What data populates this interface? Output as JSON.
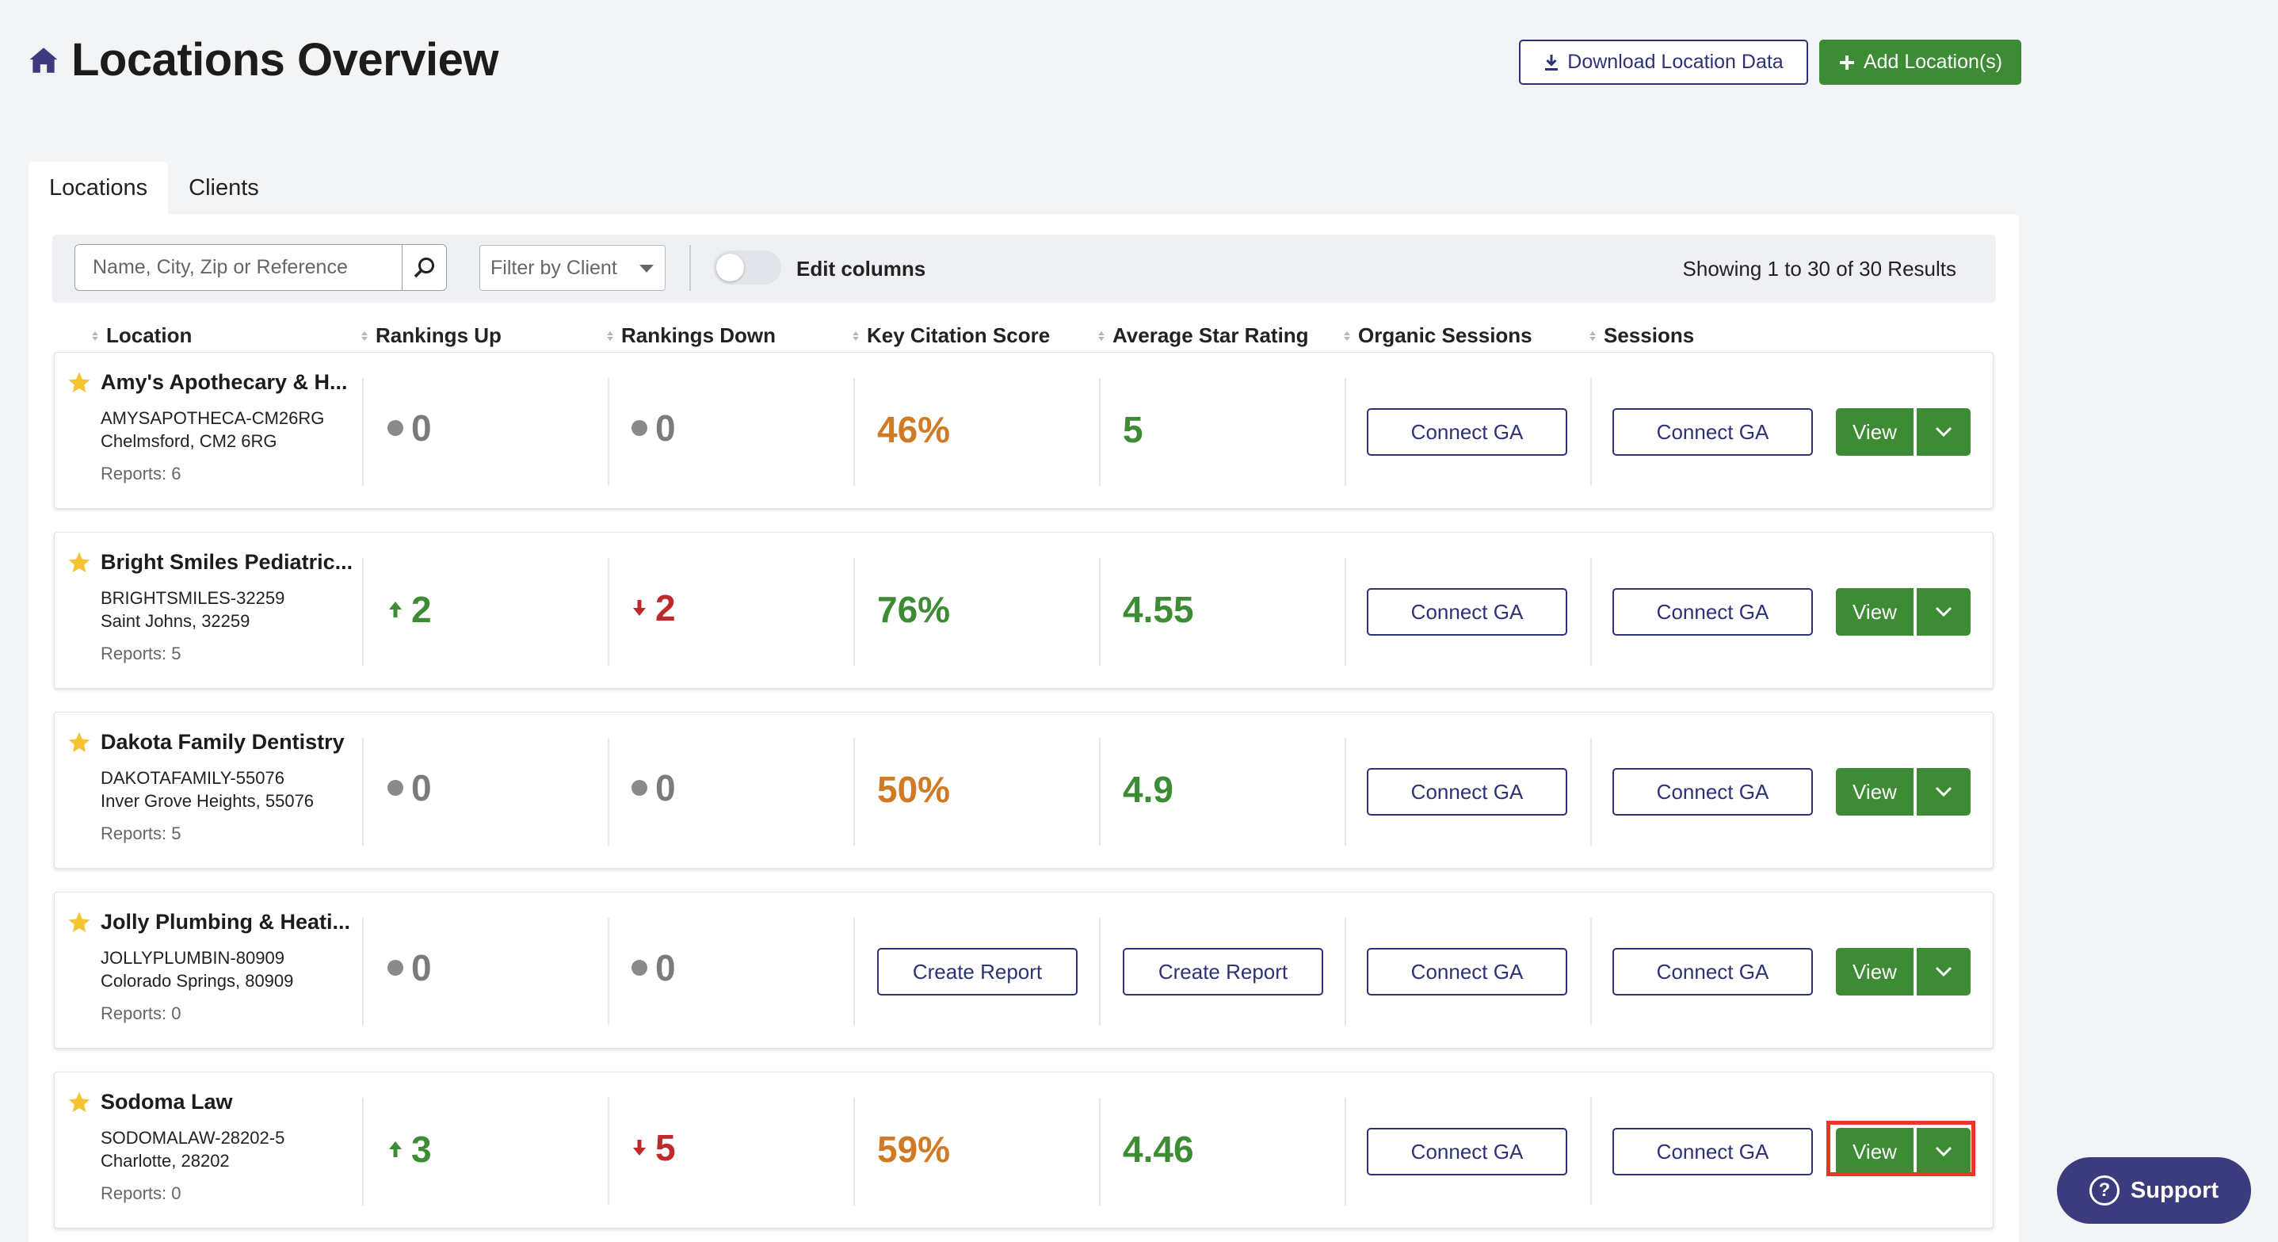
{
  "header": {
    "title": "Locations Overview",
    "download_label": "Download Location Data",
    "add_label": "Add Location(s)"
  },
  "tabs": [
    {
      "label": "Locations",
      "active": true
    },
    {
      "label": "Clients",
      "active": false
    }
  ],
  "filters": {
    "search_placeholder": "Name, City, Zip or Reference",
    "client_placeholder": "Filter by Client",
    "edit_columns_label": "Edit columns",
    "results_text": "Showing 1 to 30 of 30 Results"
  },
  "columns": [
    "Location",
    "Rankings Up",
    "Rankings Down",
    "Key Citation Score",
    "Average Star Rating",
    "Organic Sessions",
    "Sessions"
  ],
  "rows": [
    {
      "name": "Amy's Apothecary & H...",
      "ref": "AMYSAPOTHECA-CM26RG",
      "city": "Chelmsford, CM2 6RG",
      "reports": "Reports: 6",
      "up": "0",
      "up_state": "neutral",
      "down": "0",
      "down_state": "neutral",
      "citation": "46%",
      "citation_color": "orange",
      "rating": "5",
      "rating_color": "green",
      "organic": "Connect GA",
      "sessions": "Connect GA"
    },
    {
      "name": "Bright Smiles Pediatric...",
      "ref": "BRIGHTSMILES-32259",
      "city": "Saint Johns, 32259",
      "reports": "Reports: 5",
      "up": "2",
      "up_state": "up",
      "down": "2",
      "down_state": "down",
      "citation": "76%",
      "citation_color": "green",
      "rating": "4.55",
      "rating_color": "green",
      "organic": "Connect GA",
      "sessions": "Connect GA"
    },
    {
      "name": "Dakota Family Dentistry",
      "ref": "DAKOTAFAMILY-55076",
      "city": "Inver Grove Heights, 55076",
      "reports": "Reports: 5",
      "up": "0",
      "up_state": "neutral",
      "down": "0",
      "down_state": "neutral",
      "citation": "50%",
      "citation_color": "orange",
      "rating": "4.9",
      "rating_color": "green",
      "organic": "Connect GA",
      "sessions": "Connect GA"
    },
    {
      "name": "Jolly Plumbing & Heati...",
      "ref": "JOLLYPLUMBIN-80909",
      "city": "Colorado Springs, 80909",
      "reports": "Reports: 0",
      "up": "0",
      "up_state": "neutral",
      "down": "0",
      "down_state": "neutral",
      "citation": "Create Report",
      "citation_color": "button",
      "rating": "Create Report",
      "rating_color": "button",
      "organic": "Connect GA",
      "sessions": "Connect GA"
    },
    {
      "name": "Sodoma Law",
      "ref": "SODOMALAW-28202-5",
      "city": "Charlotte, 28202",
      "reports": "Reports: 0",
      "up": "3",
      "up_state": "up",
      "down": "5",
      "down_state": "down",
      "citation": "59%",
      "citation_color": "orange",
      "rating": "4.46",
      "rating_color": "green",
      "organic": "Connect GA",
      "sessions": "Connect GA"
    }
  ],
  "view_label": "View",
  "support_label": "Support",
  "colors": {
    "green": "#3d8b34",
    "navy": "#2d3277",
    "orange": "#d07a24",
    "red": "#c0282b",
    "star": "#f4c430"
  }
}
